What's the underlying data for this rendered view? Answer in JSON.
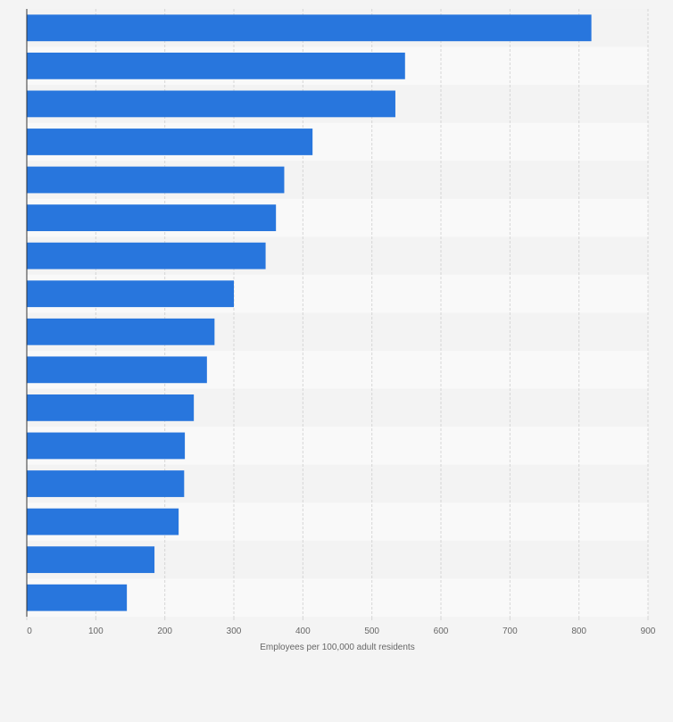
{
  "chart_data": {
    "type": "bar",
    "orientation": "horizontal",
    "title": "",
    "xlabel": "Employees per 100,000 adult residents",
    "ylabel": "",
    "categories": [
      "",
      "",
      "",
      "",
      "",
      "",
      "",
      "",
      "",
      "",
      "",
      "",
      "",
      "",
      "",
      ""
    ],
    "values": [
      818,
      548,
      534,
      414,
      373,
      361,
      346,
      300,
      272,
      261,
      242,
      229,
      228,
      220,
      185,
      145
    ],
    "xlim": [
      0,
      900
    ],
    "xticks": [
      0,
      100,
      200,
      300,
      400,
      500,
      600,
      700,
      800,
      900
    ],
    "xtick_labels": [
      "0",
      "100",
      "200",
      "300",
      "400",
      "500",
      "600",
      "700",
      "800",
      "900"
    ],
    "grid": true,
    "legend": "none",
    "colors": {
      "bar": "#2876dd",
      "background": "#f4f4f4",
      "band_light": "#f9f9f9",
      "band_dark": "#f3f3f3",
      "gridline": "#d6d6d6",
      "axis": "#333333",
      "text": "#666666"
    }
  }
}
